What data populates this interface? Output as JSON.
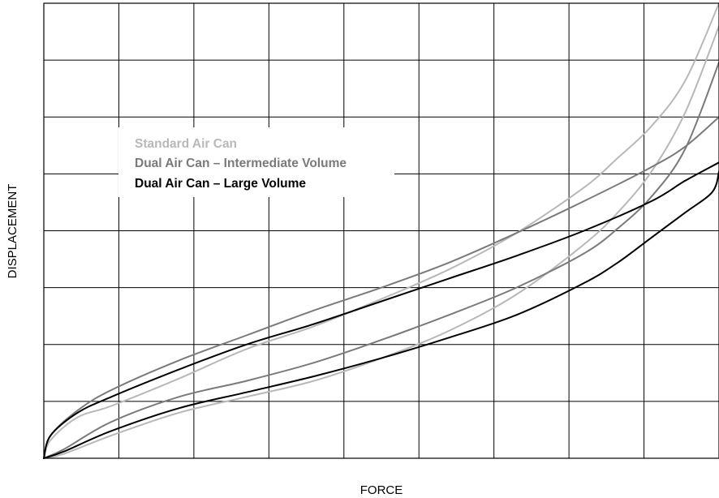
{
  "chart_data": {
    "type": "line",
    "title": "",
    "xlabel": "FORCE",
    "ylabel": "DISPLACEMENT",
    "xlim": [
      0,
      100
    ],
    "ylim": [
      0,
      100
    ],
    "grid": true,
    "grid_divisions": {
      "x": 9,
      "y": 8
    },
    "legend_position": "upper-left",
    "series": [
      {
        "name": "Standard Air Can",
        "color": "#b8b8b8",
        "loops": [
          {
            "x": [
              0,
              3,
              10,
              20,
              30,
              40,
              50,
              60,
              70,
              80,
              85,
              90,
              95,
              100
            ],
            "y": [
              0,
              1,
              5,
              10,
              13.5,
              17,
              22,
              28,
              36,
              47,
              54,
              63,
              76,
              95
            ]
          },
          {
            "x": [
              0,
              1,
              5,
              10,
              20,
              30,
              40,
              50,
              60,
              70,
              80,
              85,
              90,
              95,
              100
            ],
            "y": [
              0,
              4,
              9,
              11.5,
              17.5,
              24,
              29,
              35,
              41.5,
              49.5,
              59.5,
              66,
              73,
              83,
              100
            ]
          }
        ]
      },
      {
        "name": "Dual Air Can – Intermediate Volume",
        "color": "#7a7a7a",
        "loops": [
          {
            "x": [
              0,
              3,
              10,
              20,
              30,
              40,
              50,
              60,
              70,
              80,
              85,
              90,
              95,
              100
            ],
            "y": [
              0,
              2,
              8,
              13.5,
              17,
              21,
              26,
              31.5,
              37.5,
              45,
              50.5,
              57.5,
              68,
              87
            ]
          },
          {
            "x": [
              0,
              1,
              5,
              10,
              20,
              30,
              40,
              50,
              60,
              70,
              80,
              90,
              95,
              100
            ],
            "y": [
              0,
              5,
              10.5,
              15,
              21.5,
              27,
              32.5,
              37.5,
              43,
              49.5,
              56.5,
              64,
              68.5,
              75
            ]
          }
        ]
      },
      {
        "name": "Dual Air Can – Large Volume",
        "color": "#000000",
        "loops": [
          {
            "x": [
              0,
              3,
              10,
              20,
              30,
              40,
              50,
              60,
              70,
              80,
              85,
              90,
              95,
              99,
              100
            ],
            "y": [
              0,
              1.5,
              6,
              11,
              14.5,
              18,
              22,
              26.5,
              31.5,
              38.5,
              43,
              48.5,
              54,
              58.5,
              63
            ]
          },
          {
            "x": [
              0,
              1,
              5,
              10,
              20,
              30,
              40,
              50,
              60,
              70,
              80,
              90,
              95,
              100
            ],
            "y": [
              0,
              5,
              10,
              13.5,
              19.5,
              25,
              29.5,
              34.5,
              39.5,
              44.5,
              50,
              56.5,
              61,
              65
            ]
          }
        ]
      }
    ]
  }
}
